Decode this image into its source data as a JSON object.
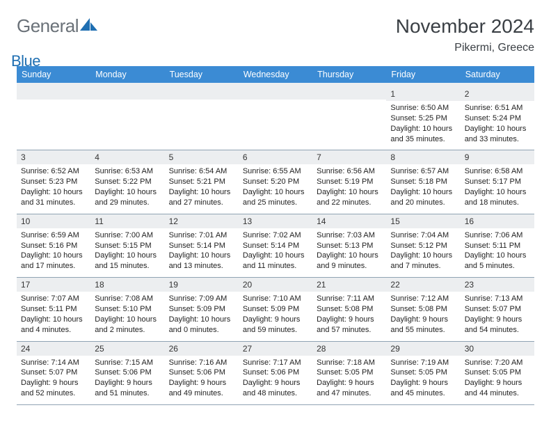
{
  "logo": {
    "general": "General",
    "blue": "Blue"
  },
  "title": "November 2024",
  "location": "Pikermi, Greece",
  "colors": {
    "header_bg": "#3b8bd4",
    "header_text": "#ffffff",
    "daynum_bg": "#eceef0",
    "row_border": "#8fa3b3",
    "logo_general": "#6a7178",
    "logo_blue": "#1f6fb2",
    "sail_fill": "#1f6fb2"
  },
  "day_headers": [
    "Sunday",
    "Monday",
    "Tuesday",
    "Wednesday",
    "Thursday",
    "Friday",
    "Saturday"
  ],
  "weeks": [
    [
      null,
      null,
      null,
      null,
      null,
      {
        "n": "1",
        "sr": "Sunrise: 6:50 AM",
        "ss": "Sunset: 5:25 PM",
        "dl": "Daylight: 10 hours and 35 minutes."
      },
      {
        "n": "2",
        "sr": "Sunrise: 6:51 AM",
        "ss": "Sunset: 5:24 PM",
        "dl": "Daylight: 10 hours and 33 minutes."
      }
    ],
    [
      {
        "n": "3",
        "sr": "Sunrise: 6:52 AM",
        "ss": "Sunset: 5:23 PM",
        "dl": "Daylight: 10 hours and 31 minutes."
      },
      {
        "n": "4",
        "sr": "Sunrise: 6:53 AM",
        "ss": "Sunset: 5:22 PM",
        "dl": "Daylight: 10 hours and 29 minutes."
      },
      {
        "n": "5",
        "sr": "Sunrise: 6:54 AM",
        "ss": "Sunset: 5:21 PM",
        "dl": "Daylight: 10 hours and 27 minutes."
      },
      {
        "n": "6",
        "sr": "Sunrise: 6:55 AM",
        "ss": "Sunset: 5:20 PM",
        "dl": "Daylight: 10 hours and 25 minutes."
      },
      {
        "n": "7",
        "sr": "Sunrise: 6:56 AM",
        "ss": "Sunset: 5:19 PM",
        "dl": "Daylight: 10 hours and 22 minutes."
      },
      {
        "n": "8",
        "sr": "Sunrise: 6:57 AM",
        "ss": "Sunset: 5:18 PM",
        "dl": "Daylight: 10 hours and 20 minutes."
      },
      {
        "n": "9",
        "sr": "Sunrise: 6:58 AM",
        "ss": "Sunset: 5:17 PM",
        "dl": "Daylight: 10 hours and 18 minutes."
      }
    ],
    [
      {
        "n": "10",
        "sr": "Sunrise: 6:59 AM",
        "ss": "Sunset: 5:16 PM",
        "dl": "Daylight: 10 hours and 17 minutes."
      },
      {
        "n": "11",
        "sr": "Sunrise: 7:00 AM",
        "ss": "Sunset: 5:15 PM",
        "dl": "Daylight: 10 hours and 15 minutes."
      },
      {
        "n": "12",
        "sr": "Sunrise: 7:01 AM",
        "ss": "Sunset: 5:14 PM",
        "dl": "Daylight: 10 hours and 13 minutes."
      },
      {
        "n": "13",
        "sr": "Sunrise: 7:02 AM",
        "ss": "Sunset: 5:14 PM",
        "dl": "Daylight: 10 hours and 11 minutes."
      },
      {
        "n": "14",
        "sr": "Sunrise: 7:03 AM",
        "ss": "Sunset: 5:13 PM",
        "dl": "Daylight: 10 hours and 9 minutes."
      },
      {
        "n": "15",
        "sr": "Sunrise: 7:04 AM",
        "ss": "Sunset: 5:12 PM",
        "dl": "Daylight: 10 hours and 7 minutes."
      },
      {
        "n": "16",
        "sr": "Sunrise: 7:06 AM",
        "ss": "Sunset: 5:11 PM",
        "dl": "Daylight: 10 hours and 5 minutes."
      }
    ],
    [
      {
        "n": "17",
        "sr": "Sunrise: 7:07 AM",
        "ss": "Sunset: 5:11 PM",
        "dl": "Daylight: 10 hours and 4 minutes."
      },
      {
        "n": "18",
        "sr": "Sunrise: 7:08 AM",
        "ss": "Sunset: 5:10 PM",
        "dl": "Daylight: 10 hours and 2 minutes."
      },
      {
        "n": "19",
        "sr": "Sunrise: 7:09 AM",
        "ss": "Sunset: 5:09 PM",
        "dl": "Daylight: 10 hours and 0 minutes."
      },
      {
        "n": "20",
        "sr": "Sunrise: 7:10 AM",
        "ss": "Sunset: 5:09 PM",
        "dl": "Daylight: 9 hours and 59 minutes."
      },
      {
        "n": "21",
        "sr": "Sunrise: 7:11 AM",
        "ss": "Sunset: 5:08 PM",
        "dl": "Daylight: 9 hours and 57 minutes."
      },
      {
        "n": "22",
        "sr": "Sunrise: 7:12 AM",
        "ss": "Sunset: 5:08 PM",
        "dl": "Daylight: 9 hours and 55 minutes."
      },
      {
        "n": "23",
        "sr": "Sunrise: 7:13 AM",
        "ss": "Sunset: 5:07 PM",
        "dl": "Daylight: 9 hours and 54 minutes."
      }
    ],
    [
      {
        "n": "24",
        "sr": "Sunrise: 7:14 AM",
        "ss": "Sunset: 5:07 PM",
        "dl": "Daylight: 9 hours and 52 minutes."
      },
      {
        "n": "25",
        "sr": "Sunrise: 7:15 AM",
        "ss": "Sunset: 5:06 PM",
        "dl": "Daylight: 9 hours and 51 minutes."
      },
      {
        "n": "26",
        "sr": "Sunrise: 7:16 AM",
        "ss": "Sunset: 5:06 PM",
        "dl": "Daylight: 9 hours and 49 minutes."
      },
      {
        "n": "27",
        "sr": "Sunrise: 7:17 AM",
        "ss": "Sunset: 5:06 PM",
        "dl": "Daylight: 9 hours and 48 minutes."
      },
      {
        "n": "28",
        "sr": "Sunrise: 7:18 AM",
        "ss": "Sunset: 5:05 PM",
        "dl": "Daylight: 9 hours and 47 minutes."
      },
      {
        "n": "29",
        "sr": "Sunrise: 7:19 AM",
        "ss": "Sunset: 5:05 PM",
        "dl": "Daylight: 9 hours and 45 minutes."
      },
      {
        "n": "30",
        "sr": "Sunrise: 7:20 AM",
        "ss": "Sunset: 5:05 PM",
        "dl": "Daylight: 9 hours and 44 minutes."
      }
    ]
  ]
}
